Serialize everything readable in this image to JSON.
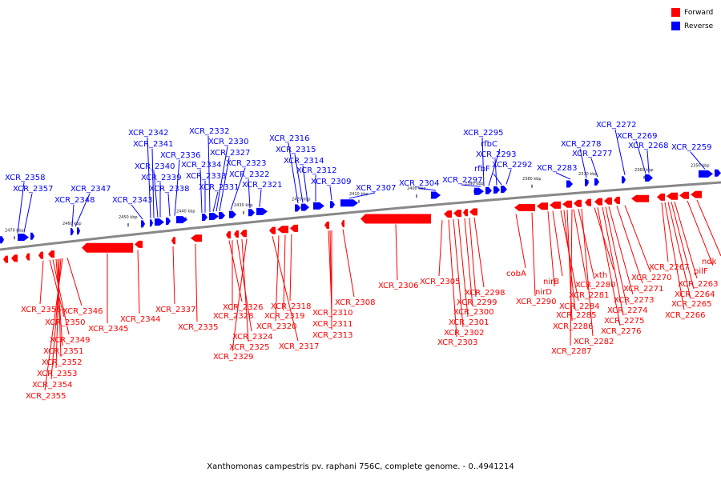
{
  "legend": {
    "forward": {
      "label": "Forward",
      "color": "#ff0000"
    },
    "reverse": {
      "label": "Reverse",
      "color": "#0000ff"
    }
  },
  "caption": "Xanthomonas campestris pv. raphani 756C, complete genome. - 0..4941214",
  "axis_color": "#888888",
  "ticks": [
    "2470 kbp",
    "2460 kbp",
    "2450 kbp",
    "2440 kbp",
    "2430 kbp",
    "2420 kbp",
    "2410 kbp",
    "2400 kbp",
    "2390 kbp",
    "2380 kbp",
    "2370 kbp",
    "2360 kbp",
    "2350 kbp"
  ],
  "reverse_labels": [
    "XCR_2358",
    "XCR_2357",
    "XCR_2347",
    "XCR_2348",
    "XCR_2343",
    "XCR_2342",
    "XCR_2341",
    "XCR_2340",
    "XCR_2339",
    "XCR_2338",
    "XCR_2336",
    "XCR_2334",
    "XCR_2333",
    "XCR_2332",
    "XCR_2331",
    "XCR_2330",
    "XCR_2327",
    "XCR_2323",
    "XCR_2322",
    "XCR_2321",
    "XCR_2316",
    "XCR_2315",
    "XCR_2314",
    "XCR_2312",
    "XCR_2309",
    "XCR_2307",
    "XCR_2304",
    "XCR_2297",
    "XCR_2295",
    "rfbC",
    "XCR_2293",
    "rfbF",
    "XCR_2292",
    "XCR_2283",
    "XCR_2278",
    "XCR_2277",
    "XCR_2272",
    "XCR_2269",
    "XCR_2268",
    "XCR_2259"
  ],
  "forward_labels": [
    "XCR_2356",
    "XCR_2350",
    "XCR_2349",
    "XCR_2351",
    "XCR_2352",
    "XCR_2353",
    "XCR_2354",
    "XCR_2355",
    "XCR_2346",
    "XCR_2345",
    "XCR_2344",
    "XCR_2337",
    "XCR_2335",
    "XCR_2326",
    "XCR_2328",
    "XCR_2324",
    "XCR_2325",
    "XCR_2329",
    "XCR_2318",
    "XCR_2319",
    "XCR_2320",
    "XCR_2317",
    "XCR_2310",
    "XCR_2311",
    "XCR_2313",
    "XCR_2308",
    "XCR_2306",
    "XCR_2305",
    "XCR_2298",
    "XCR_2299",
    "XCR_2300",
    "XCR_2301",
    "XCR_2302",
    "XCR_2303",
    "cobA",
    "XCR_2290",
    "nirB",
    "nirD",
    "XCR_2284",
    "XCR_2285",
    "XCR_2286",
    "XCR_2281",
    "XCR_2280",
    "XCR_2282",
    "XCR_2287",
    "xth",
    "XCR_2273",
    "XCR_2274",
    "XCR_2275",
    "XCR_2276",
    "XCR_2271",
    "XCR_2270",
    "XCR_2267",
    "XCR_2263",
    "XCR_2264",
    "XCR_2265",
    "XCR_2266",
    "pilF",
    "ndk"
  ]
}
